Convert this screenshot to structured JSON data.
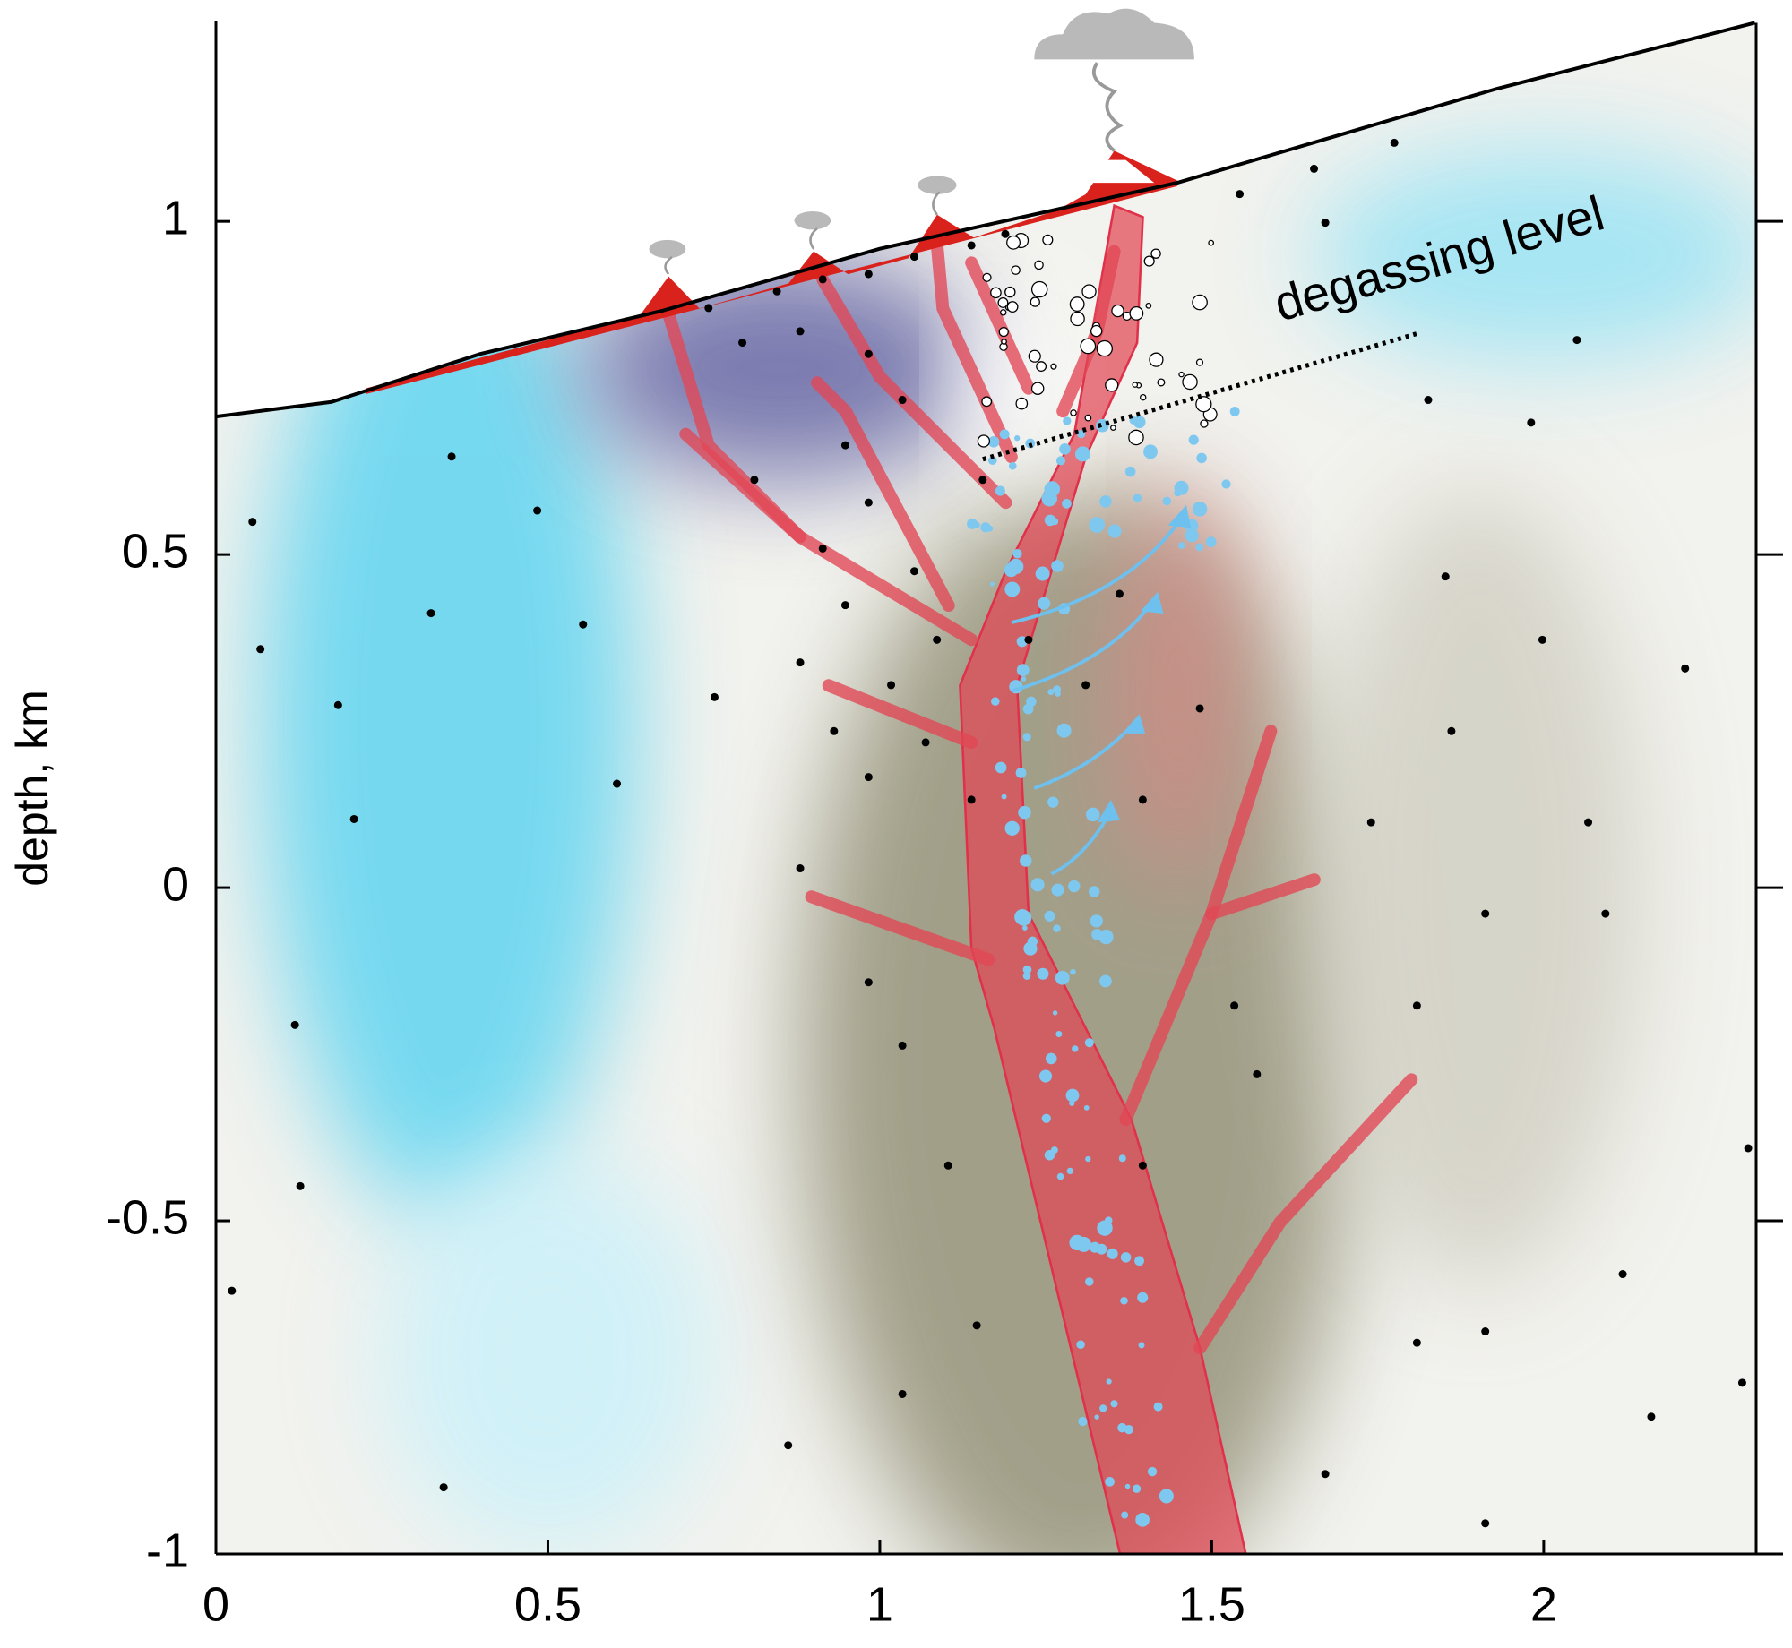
{
  "chart_data": {
    "type": "scatter",
    "ylabel": "depth, km",
    "annotation": "degassing level",
    "xlim": [
      0,
      2.32
    ],
    "ylim": [
      -1,
      1.3
    ],
    "xticks": [
      0,
      0.5,
      1,
      1.5,
      2
    ],
    "yticks": [
      -1,
      -0.5,
      0,
      0.5,
      1
    ],
    "color": "#000000",
    "surface": {
      "color": "#000000",
      "x": [
        0,
        0.174,
        0.398,
        0.673,
        1.0,
        1.448,
        1.929,
        2.318
      ],
      "y": [
        0.707,
        0.729,
        0.801,
        0.866,
        0.959,
        1.058,
        1.199,
        1.298
      ]
    },
    "x": [
      0.055,
      0.067,
      0.184,
      0.208,
      0.119,
      0.127,
      0.024,
      0.343,
      0.324,
      0.553,
      0.604,
      0.484,
      0.355,
      0.751,
      0.88,
      0.983,
      1.034,
      1.103,
      1.146,
      1.034,
      0.862,
      1.396,
      1.534,
      1.568,
      1.74,
      1.861,
      1.912,
      2.067,
      2.093,
      2.213,
      1.998,
      1.852,
      1.809,
      1.809,
      1.912,
      2.119,
      2.162,
      2.299,
      2.308,
      1.912,
      1.671,
      1.981,
      2.05,
      1.654,
      1.775,
      1.542,
      1.826,
      1.671,
      0.742,
      0.845,
      0.914,
      0.983,
      1.052,
      1.138,
      1.189,
      0.793,
      0.88,
      0.983,
      1.034,
      0.948,
      0.811,
      0.914,
      0.983,
      1.052,
      0.948,
      1.017,
      0.931,
      0.983,
      1.069,
      1.138,
      1.224,
      1.31,
      1.396,
      1.361,
      1.482,
      1.086,
      0.88,
      1.155
    ],
    "y": [
      0.549,
      0.358,
      0.274,
      0.103,
      -0.206,
      -0.448,
      -0.605,
      -0.9,
      0.412,
      0.395,
      0.156,
      0.566,
      0.647,
      0.286,
      0.029,
      -0.142,
      -0.237,
      -0.417,
      -0.657,
      -0.76,
      -0.837,
      -0.417,
      -0.177,
      -0.28,
      0.098,
      0.235,
      -0.039,
      0.098,
      -0.039,
      0.329,
      0.372,
      0.467,
      -0.177,
      -0.683,
      -0.666,
      -0.58,
      -0.794,
      -0.743,
      -0.391,
      -0.954,
      -0.88,
      0.698,
      0.822,
      1.079,
      1.118,
      1.041,
      0.732,
      0.998,
      0.87,
      0.895,
      0.913,
      0.921,
      0.947,
      0.964,
      0.981,
      0.818,
      0.835,
      0.801,
      0.732,
      0.664,
      0.612,
      0.509,
      0.578,
      0.475,
      0.424,
      0.304,
      0.235,
      0.166,
      0.218,
      0.132,
      0.372,
      0.304,
      0.132,
      0.441,
      0.269,
      0.372,
      0.338,
      0.612
    ]
  }
}
